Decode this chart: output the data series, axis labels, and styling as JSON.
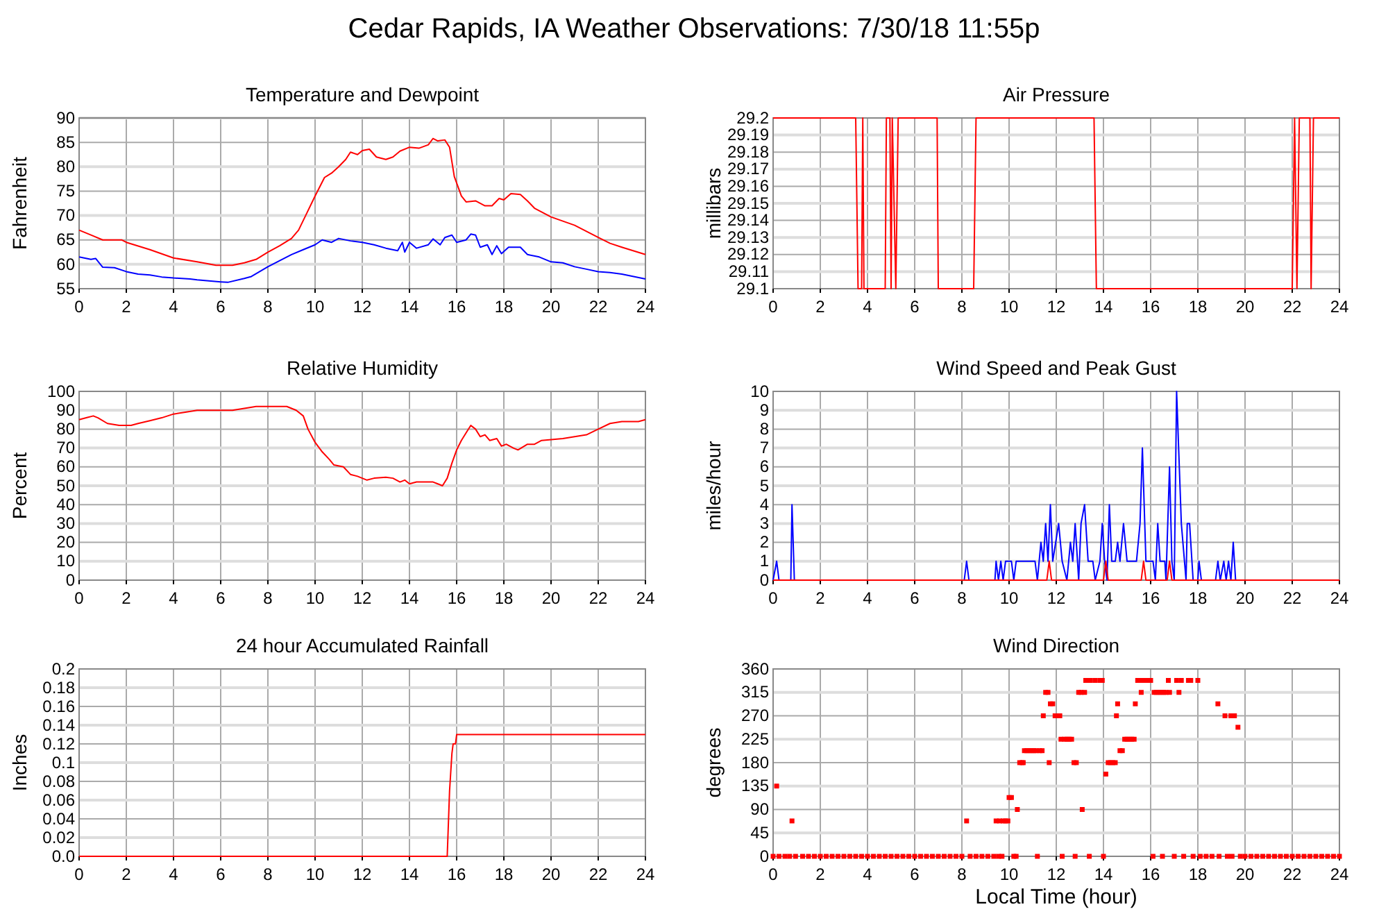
{
  "chart_data": [
    {
      "type": "other",
      "title": "Cedar Rapids, IA Weather Observations: 7/30/18 11:55p"
    },
    {
      "type": "line",
      "title": "Temperature and Dewpoint",
      "ylabel": "Fahrenheit",
      "xlim": [
        0,
        24
      ],
      "xticks": [
        0,
        2,
        4,
        6,
        8,
        10,
        12,
        14,
        16,
        18,
        20,
        22,
        24
      ],
      "ylim": [
        55,
        90
      ],
      "yticks": [
        55,
        60,
        65,
        70,
        75,
        80,
        85,
        90
      ],
      "grid": true,
      "series": [
        {
          "color": "#ff0000",
          "x": [
            0,
            0.5,
            1,
            1.8,
            2,
            3,
            4,
            5,
            5.8,
            6.5,
            7,
            7.5,
            8,
            8.5,
            9,
            9.3,
            9.6,
            10,
            10.4,
            10.7,
            11,
            11.3,
            11.5,
            11.8,
            12,
            12.3,
            12.6,
            13,
            13.3,
            13.6,
            14,
            14.4,
            14.8,
            15,
            15.2,
            15.5,
            15.7,
            15.9,
            16.2,
            16.4,
            16.8,
            17.2,
            17.5,
            17.8,
            18,
            18.3,
            18.7,
            19,
            19.3,
            20,
            21,
            22,
            22.5,
            23,
            24
          ],
          "values": [
            67,
            66,
            65,
            65,
            64.5,
            63,
            61.3,
            60.5,
            59.8,
            59.8,
            60.3,
            61,
            62.5,
            63.8,
            65.3,
            67,
            70,
            74,
            77.8,
            78.7,
            80,
            81.5,
            83,
            82.5,
            83.3,
            83.6,
            82,
            81.5,
            82,
            83.2,
            84,
            83.8,
            84.5,
            85.8,
            85.3,
            85.5,
            84,
            78,
            74,
            72.8,
            73,
            72,
            72,
            73.5,
            73.2,
            74.5,
            74.3,
            73,
            71.5,
            69.7,
            68,
            65.5,
            64.3,
            63.5,
            62
          ]
        },
        {
          "color": "#0000ff",
          "x": [
            0,
            0.5,
            0.7,
            1,
            1.5,
            2,
            2.5,
            3,
            3.5,
            4,
            4.7,
            5,
            5.5,
            6,
            6.3,
            7,
            7.3,
            8,
            9,
            9.5,
            10,
            10.3,
            10.7,
            11,
            11.5,
            12,
            12.5,
            13,
            13.5,
            13.7,
            13.8,
            14,
            14.3,
            14.8,
            15,
            15.3,
            15.5,
            15.8,
            16,
            16.4,
            16.6,
            16.8,
            17,
            17.3,
            17.5,
            17.7,
            17.9,
            18.2,
            18.7,
            19,
            19.5,
            20,
            20.5,
            21,
            21.5,
            22,
            22.5,
            23,
            24
          ],
          "values": [
            61.5,
            61,
            61.2,
            59.4,
            59.3,
            58.5,
            58,
            57.8,
            57.4,
            57.2,
            57,
            56.8,
            56.6,
            56.4,
            56.3,
            57.1,
            57.5,
            59.5,
            62,
            63,
            64,
            65,
            64.5,
            65.3,
            64.8,
            64.5,
            64,
            63.3,
            62.8,
            64.5,
            62.5,
            64.5,
            63.3,
            64,
            65.2,
            64,
            65.5,
            66,
            64.5,
            65,
            66.2,
            66,
            63.5,
            64,
            62,
            63.8,
            62.2,
            63.5,
            63.5,
            62,
            61.5,
            60.5,
            60.3,
            59.5,
            59,
            58.5,
            58.3,
            58,
            57
          ]
        }
      ]
    },
    {
      "type": "line",
      "title": "Air Pressure",
      "ylabel": "millibars",
      "xlim": [
        0,
        24
      ],
      "xticks": [
        0,
        2,
        4,
        6,
        8,
        10,
        12,
        14,
        16,
        18,
        20,
        22,
        24
      ],
      "ylim": [
        29.1,
        29.2
      ],
      "yticks": [
        29.1,
        29.11,
        29.12,
        29.13,
        29.14,
        29.15,
        29.16,
        29.17,
        29.18,
        29.19,
        29.2
      ],
      "grid": true,
      "series": [
        {
          "color": "#ff0000",
          "x": [
            0,
            3.5,
            3.6,
            3.75,
            3.8,
            3.85,
            4.75,
            4.8,
            4.95,
            5,
            5.05,
            5.2,
            5.3,
            6.95,
            7,
            8.5,
            8.6,
            13.6,
            13.7,
            22,
            22.1,
            22.2,
            22.3,
            22.75,
            22.8,
            22.9,
            24
          ],
          "values": [
            29.2,
            29.2,
            29.1,
            29.1,
            29.2,
            29.1,
            29.1,
            29.2,
            29.2,
            29.1,
            29.2,
            29.1,
            29.2,
            29.2,
            29.1,
            29.1,
            29.2,
            29.2,
            29.1,
            29.1,
            29.2,
            29.1,
            29.2,
            29.2,
            29.1,
            29.2,
            29.2
          ]
        }
      ]
    },
    {
      "type": "line",
      "title": "Relative Humidity",
      "ylabel": "Percent",
      "xlim": [
        0,
        24
      ],
      "xticks": [
        0,
        2,
        4,
        6,
        8,
        10,
        12,
        14,
        16,
        18,
        20,
        22,
        24
      ],
      "ylim": [
        0,
        100
      ],
      "yticks": [
        0,
        10,
        20,
        30,
        40,
        50,
        60,
        70,
        80,
        90,
        100
      ],
      "grid": true,
      "series": [
        {
          "color": "#ff0000",
          "x": [
            0,
            0.3,
            0.6,
            0.8,
            1.2,
            1.7,
            2.2,
            2.5,
            3,
            3.5,
            4,
            4.5,
            5,
            6.5,
            7,
            7.5,
            8.8,
            9.2,
            9.5,
            9.7,
            10,
            10.3,
            10.6,
            10.8,
            11.2,
            11.5,
            11.8,
            12,
            12.2,
            12.5,
            13,
            13.3,
            13.6,
            13.8,
            14,
            14.3,
            15,
            15.2,
            15.4,
            15.6,
            15.8,
            16,
            16.2,
            16.4,
            16.6,
            16.8,
            17,
            17.2,
            17.4,
            17.7,
            17.9,
            18.1,
            18.4,
            18.6,
            19,
            19.3,
            19.6,
            20.5,
            21.5,
            22,
            22.5,
            23,
            23.7,
            24
          ],
          "values": [
            85,
            86,
            87,
            86,
            83,
            82,
            82,
            83,
            84.5,
            86,
            88,
            89,
            90,
            90,
            91,
            92,
            92,
            90,
            87,
            80,
            73,
            68,
            64,
            61,
            60,
            56,
            55,
            54,
            53,
            54,
            54.5,
            54,
            52,
            53,
            51,
            52,
            52,
            51,
            50,
            54,
            62,
            69,
            74,
            78,
            82,
            80,
            76,
            77,
            74,
            75,
            71,
            72,
            70,
            69,
            72,
            72,
            74,
            75,
            77,
            80,
            83,
            84,
            84,
            85
          ]
        }
      ]
    },
    {
      "type": "line",
      "title": "Wind Speed and Peak Gust",
      "ylabel": "miles/hour",
      "xlim": [
        0,
        24
      ],
      "xticks": [
        0,
        2,
        4,
        6,
        8,
        10,
        12,
        14,
        16,
        18,
        20,
        22,
        24
      ],
      "ylim": [
        0,
        10
      ],
      "yticks": [
        0,
        1,
        2,
        3,
        4,
        5,
        6,
        7,
        8,
        9,
        10
      ],
      "grid": true,
      "series": [
        {
          "color": "#0000ff",
          "x": [
            0,
            0.15,
            0.25,
            0.75,
            0.8,
            0.9,
            8.1,
            8.2,
            8.3,
            9.4,
            9.45,
            9.55,
            9.65,
            9.75,
            9.85,
            10.1,
            10.2,
            10.3,
            11.1,
            11.2,
            11.35,
            11.45,
            11.55,
            11.65,
            11.75,
            11.85,
            12.1,
            12.25,
            12.45,
            12.6,
            12.7,
            12.8,
            12.95,
            13.05,
            13.2,
            13.35,
            13.55,
            13.65,
            13.85,
            13.95,
            14.05,
            14.15,
            14.25,
            14.35,
            14.5,
            14.6,
            14.7,
            14.85,
            15,
            15.4,
            15.55,
            15.65,
            15.8,
            16.1,
            16.2,
            16.3,
            16.4,
            16.6,
            16.65,
            16.7,
            16.8,
            16.9,
            17,
            17.1,
            17.3,
            17.5,
            17.55,
            17.65,
            17.8,
            18,
            18.05,
            18.15,
            18.75,
            18.85,
            18.95,
            19.1,
            19.2,
            19.3,
            19.4,
            19.5,
            19.6,
            24
          ],
          "values": [
            0,
            1,
            0,
            0,
            4,
            0,
            0,
            1,
            0,
            0,
            1,
            0,
            1,
            0,
            1,
            1,
            0,
            1,
            1,
            0,
            2,
            1,
            3,
            1,
            4,
            1,
            3,
            1,
            0,
            2,
            1,
            3,
            0,
            3,
            4,
            1,
            1,
            0,
            1,
            3,
            1,
            0,
            4,
            1,
            1,
            2,
            1,
            3,
            1,
            1,
            3,
            7,
            1,
            1,
            0,
            3,
            1,
            1,
            0,
            2,
            6,
            1,
            0,
            10,
            3,
            0,
            3,
            3,
            0,
            0,
            1,
            0,
            0,
            1,
            0,
            1,
            0,
            1,
            0,
            2,
            0,
            0
          ]
        },
        {
          "color": "#ff0000",
          "x": [
            0,
            11.6,
            11.7,
            11.8,
            14,
            14.1,
            14.2,
            15.6,
            15.7,
            15.8,
            16.7,
            16.8,
            16.9,
            24
          ],
          "values": [
            0,
            0,
            1,
            0,
            0,
            1,
            0,
            0,
            1,
            0,
            0,
            1,
            0,
            0
          ]
        }
      ]
    },
    {
      "type": "line",
      "title": "24 hour Accumulated Rainfall",
      "ylabel": "Inches",
      "xlim": [
        0,
        24
      ],
      "xticks": [
        0,
        2,
        4,
        6,
        8,
        10,
        12,
        14,
        16,
        18,
        20,
        22,
        24
      ],
      "ylim": [
        0,
        0.2
      ],
      "yticks": [
        {
          "value": 0,
          "label": "0.0"
        },
        0.02,
        0.04,
        0.06,
        0.08,
        0.1,
        0.12,
        0.14,
        0.16,
        0.18,
        0.2
      ],
      "grid": true,
      "series": [
        {
          "color": "#ff0000",
          "x": [
            0,
            15.6,
            15.7,
            15.8,
            15.85,
            15.95,
            16,
            24
          ],
          "values": [
            0,
            0,
            0.07,
            0.11,
            0.12,
            0.12,
            0.13,
            0.13
          ]
        }
      ]
    },
    {
      "type": "scatter",
      "title": "Wind Direction",
      "xlabel": "Local Time (hour)",
      "ylabel": "degrees",
      "xlim": [
        0,
        24
      ],
      "xticks": [
        0,
        2,
        4,
        6,
        8,
        10,
        12,
        14,
        16,
        18,
        20,
        22,
        24
      ],
      "ylim": [
        0,
        360
      ],
      "yticks": [
        0,
        45,
        90,
        135,
        180,
        225,
        270,
        315,
        360
      ],
      "grid": true,
      "marker": "square",
      "series": [
        {
          "color": "#ff0000",
          "x": [
            0.15,
            0.8,
            8.2,
            9.45,
            9.6,
            9.75,
            9.85,
            9.95,
            10,
            10.1,
            10.35,
            10.45,
            10.55,
            10.6,
            10.65,
            10.75,
            10.85,
            10.95,
            11.05,
            11.15,
            11.3,
            11.4,
            11.45,
            11.55,
            11.65,
            11.7,
            11.75,
            11.85,
            11.95,
            12.05,
            12.15,
            12.2,
            12.35,
            12.45,
            12.55,
            12.65,
            12.75,
            12.85,
            12.95,
            13.05,
            13.1,
            13.2,
            13.25,
            13.45,
            13.65,
            13.85,
            13.95,
            14.1,
            14.2,
            14.3,
            14.4,
            14.5,
            14.55,
            14.6,
            14.7,
            14.8,
            14.9,
            15,
            15.1,
            15.2,
            15.3,
            15.35,
            15.45,
            15.55,
            15.6,
            15.7,
            15.8,
            15.9,
            16,
            16.15,
            16.25,
            16.35,
            16.45,
            16.55,
            16.65,
            16.75,
            16.8,
            17.1,
            17.2,
            17.3,
            17.6,
            17.7,
            18,
            18.85,
            19.15,
            19.4,
            19.55,
            19.7,
            0,
            0.25,
            0.5,
            0.7,
            0.95,
            1.25,
            1.5,
            1.75,
            2,
            2.25,
            2.5,
            2.75,
            3,
            3.25,
            3.5,
            3.75,
            4,
            4.25,
            4.5,
            4.75,
            5,
            5.25,
            5.5,
            5.75,
            6,
            6.25,
            6.5,
            6.75,
            7,
            7.25,
            7.5,
            7.75,
            8,
            8.35,
            8.6,
            8.85,
            9.1,
            9.35,
            9.55,
            9.7,
            10.2,
            10.3,
            11.2,
            12.25,
            12.8,
            13.4,
            14,
            16.1,
            16.5,
            17,
            17.4,
            17.8,
            18.1,
            18.35,
            18.6,
            18.9,
            19.25,
            19.45,
            19.8,
            20,
            20.25,
            20.5,
            20.75,
            21,
            21.25,
            21.5,
            21.75,
            22,
            22.25,
            22.5,
            22.75,
            23,
            23.25,
            23.5,
            23.75,
            24
          ],
          "values": [
            135,
            68,
            68,
            68,
            68,
            68,
            68,
            68,
            113,
            113,
            90,
            180,
            180,
            180,
            203,
            203,
            203,
            203,
            203,
            203,
            203,
            203,
            270,
            315,
            315,
            180,
            293,
            293,
            270,
            270,
            270,
            225,
            225,
            225,
            225,
            225,
            180,
            180,
            315,
            315,
            90,
            315,
            338,
            338,
            338,
            338,
            338,
            158,
            180,
            180,
            180,
            180,
            270,
            293,
            203,
            203,
            225,
            225,
            225,
            225,
            225,
            293,
            338,
            338,
            315,
            338,
            338,
            338,
            338,
            315,
            315,
            315,
            315,
            315,
            315,
            338,
            315,
            338,
            315,
            338,
            338,
            338,
            338,
            293,
            270,
            270,
            270,
            248,
            0,
            0,
            0,
            0,
            0,
            0,
            0,
            0,
            0,
            0,
            0,
            0,
            0,
            0,
            0,
            0,
            0,
            0,
            0,
            0,
            0,
            0,
            0,
            0,
            0,
            0,
            0,
            0,
            0,
            0,
            0,
            0,
            0,
            0,
            0,
            0,
            0,
            0,
            0,
            0,
            0,
            0,
            0,
            0,
            0,
            0,
            0,
            0,
            0,
            0,
            0,
            0,
            0,
            0,
            0,
            0,
            0,
            0,
            0,
            0,
            0,
            0,
            0,
            0,
            0,
            0,
            0,
            0,
            0,
            0,
            0,
            0,
            0,
            0,
            0,
            0
          ]
        }
      ]
    }
  ]
}
